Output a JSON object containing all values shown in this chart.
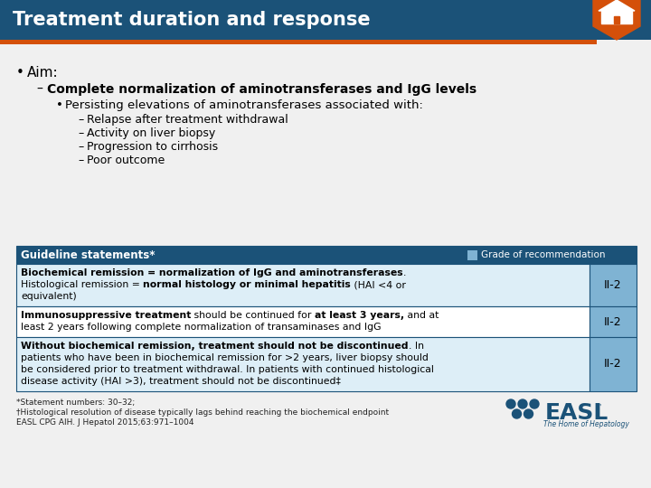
{
  "title": "Treatment duration and response",
  "title_bg": "#1b5278",
  "title_color": "#ffffff",
  "title_fontsize": 15,
  "body_bg": "#f0f0f0",
  "bullet1": "Aim:",
  "bullet2": "Complete normalization of aminotransferases and IgG levels",
  "bullet3": "Persisting elevations of aminotransferases associated with:",
  "sub_bullets": [
    "Relapse after treatment withdrawal",
    "Activity on liver biopsy",
    "Progression to cirrhosis",
    "Poor outcome"
  ],
  "table_header_bg": "#1b5278",
  "table_header_color": "#ffffff",
  "table_header_text": "Guideline statements*",
  "table_grade_text": "Grade of recommendation",
  "table_grade_box_color": "#7fb3d3",
  "table_border_color": "#1b5278",
  "table_rows": [
    {
      "lines": [
        [
          {
            "text": "Biochemical remission = normalization of IgG and aminotransferases",
            "bold": true
          },
          {
            "text": ".",
            "bold": false
          }
        ],
        [
          {
            "text": "Histological remission = ",
            "bold": false
          },
          {
            "text": "normal histology or minimal hepatitis",
            "bold": true
          },
          {
            "text": " (HAI <4 or",
            "bold": false
          }
        ],
        [
          {
            "text": "equivalent)",
            "bold": false
          }
        ]
      ],
      "grade": "II-2",
      "bg": "#ddeef7"
    },
    {
      "lines": [
        [
          {
            "text": "Immunosuppressive treatment",
            "bold": true
          },
          {
            "text": " should be continued for ",
            "bold": false
          },
          {
            "text": "at least 3 years,",
            "bold": true
          },
          {
            "text": " and at",
            "bold": false
          }
        ],
        [
          {
            "text": "least 2 years following complete normalization of transaminases and IgG",
            "bold": false
          }
        ]
      ],
      "grade": "II-2",
      "bg": "#ffffff"
    },
    {
      "lines": [
        [
          {
            "text": "Without biochemical remission, treatment should not be discontinued",
            "bold": true
          },
          {
            "text": ". In",
            "bold": false
          }
        ],
        [
          {
            "text": "patients who have been in biochemical remission for >2 years, liver biopsy should",
            "bold": false
          }
        ],
        [
          {
            "text": "be considered prior to treatment withdrawal. In patients with continued histological",
            "bold": false
          }
        ],
        [
          {
            "text": "disease activity (HAI >3), treatment should not be discontinued‡",
            "bold": false
          }
        ]
      ],
      "grade": "II-2",
      "bg": "#ddeef7"
    }
  ],
  "footnote_lines": [
    "*Statement numbers: 30–32;",
    "†Histological resolution of disease typically lags behind reaching the biochemical endpoint",
    "EASL CPG AIH. J Hepatol 2015;63:971–1004"
  ],
  "easl_color": "#1b5278",
  "orange_color": "#d4500a"
}
